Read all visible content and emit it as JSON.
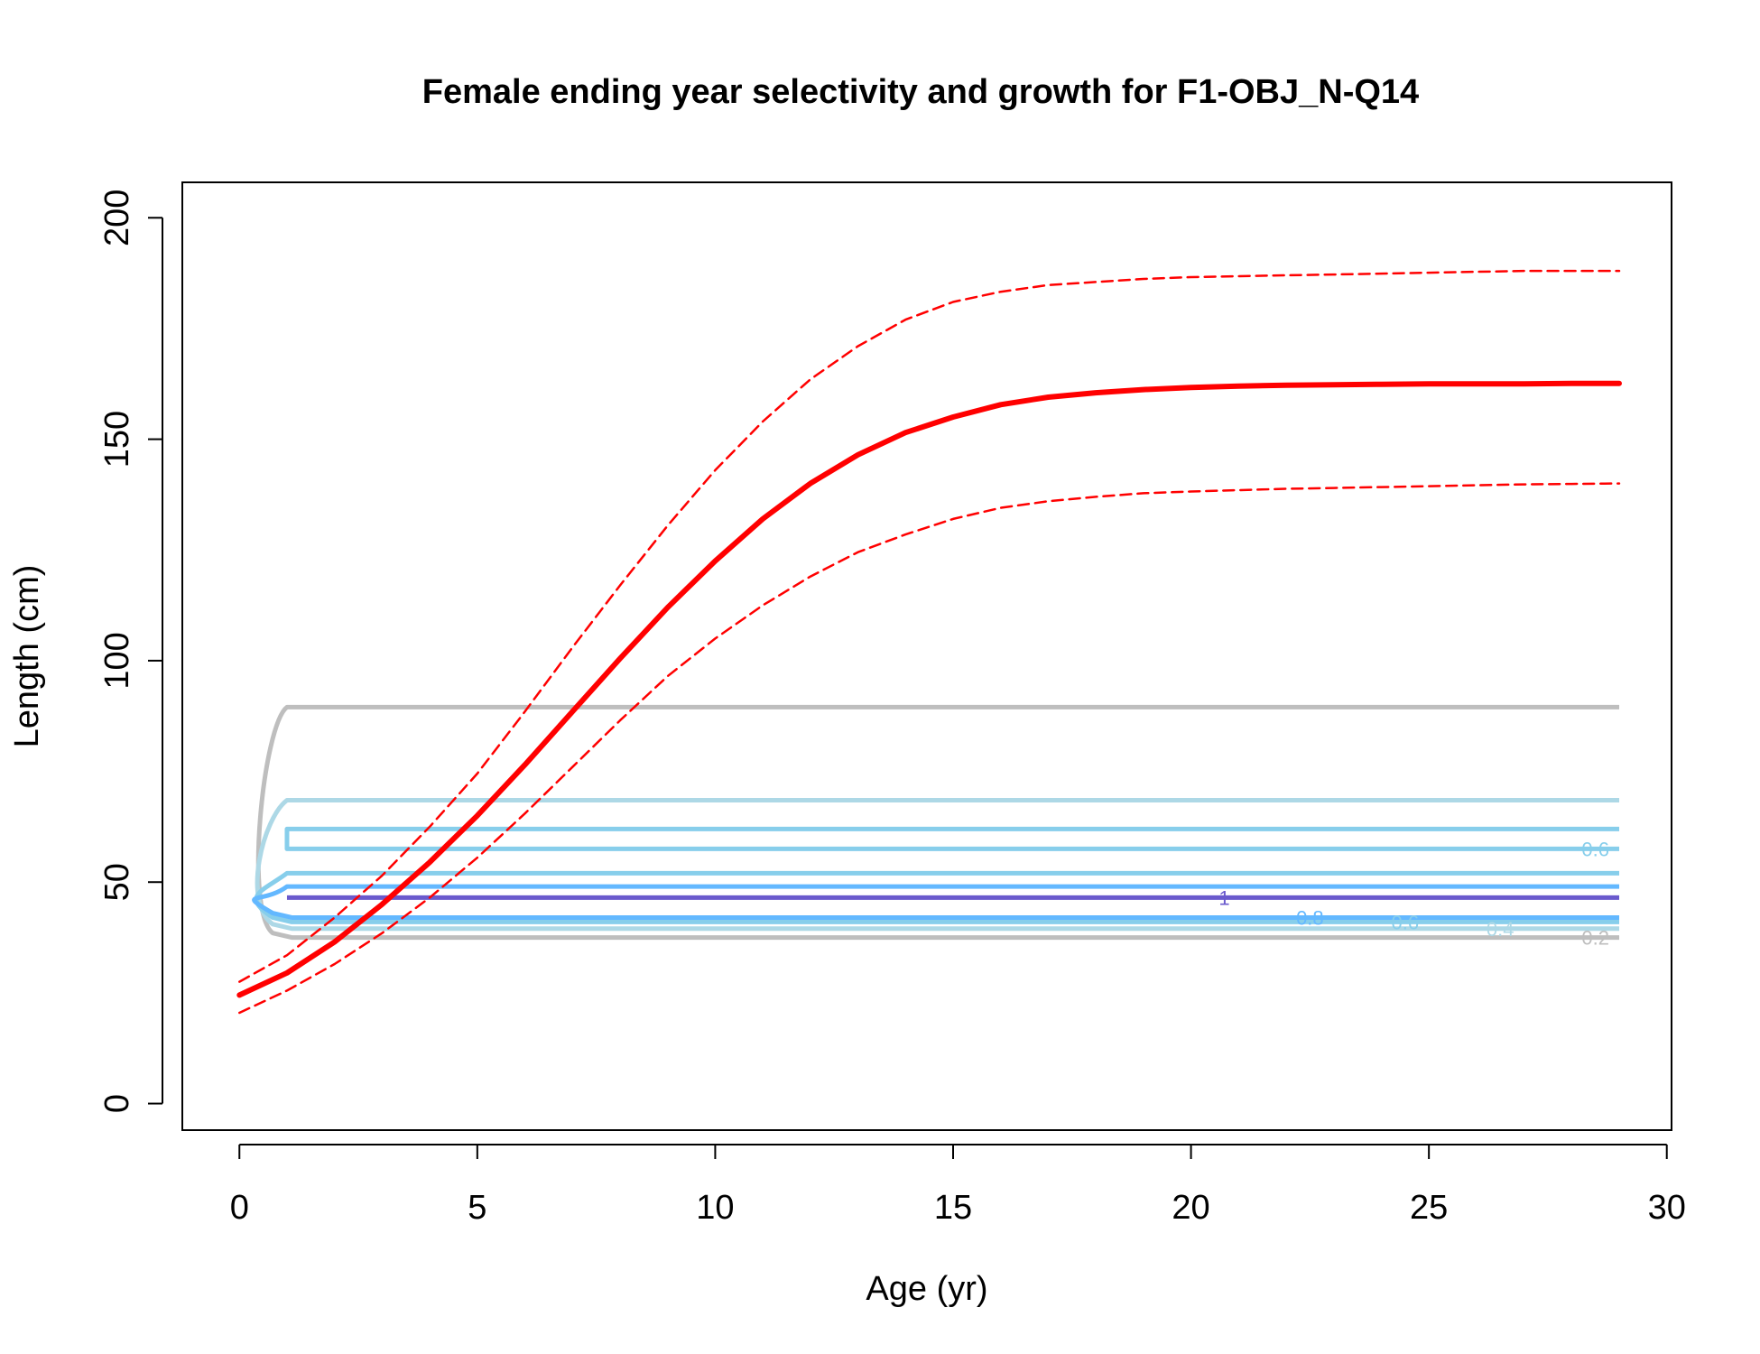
{
  "chart_data": {
    "type": "line",
    "title": "Female ending year selectivity and growth for F1-OBJ_N-Q14",
    "xlabel": "Age (yr)",
    "ylabel": "Length (cm)",
    "xlim": [
      -1.2,
      30.1
    ],
    "ylim": [
      -6,
      208
    ],
    "x_ticks": [
      0,
      5,
      10,
      15,
      20,
      25,
      30
    ],
    "y_ticks": [
      0,
      50,
      100,
      150,
      200
    ],
    "x_tick_labels": [
      "0",
      "5",
      "10",
      "15",
      "20",
      "25",
      "30"
    ],
    "y_tick_labels": [
      "0",
      "50",
      "100",
      "150",
      "200"
    ],
    "grid": false,
    "series": [
      {
        "role": "mean",
        "color": "#ff0000",
        "style": "solid-thick",
        "x": [
          0,
          1,
          2,
          3,
          4,
          5,
          6,
          7,
          8,
          9,
          10,
          11,
          12,
          13,
          14,
          15,
          16,
          17,
          18,
          19,
          20,
          21,
          22,
          23,
          24,
          25,
          26,
          27,
          28,
          29
        ],
        "values": [
          24.5,
          29.5,
          36.5,
          45.0,
          54.5,
          65.0,
          76.5,
          88.5,
          100.5,
          112.0,
          122.5,
          132.0,
          140.0,
          146.5,
          151.5,
          155.0,
          157.8,
          159.5,
          160.5,
          161.2,
          161.7,
          162.0,
          162.2,
          162.3,
          162.4,
          162.5,
          162.5,
          162.5,
          162.6,
          162.6
        ]
      },
      {
        "role": "upper",
        "color": "#ff0000",
        "style": "dashed",
        "x": [
          0,
          1,
          2,
          3,
          4,
          5,
          6,
          7,
          8,
          9,
          10,
          11,
          12,
          13,
          14,
          15,
          16,
          17,
          18,
          19,
          20,
          21,
          22,
          23,
          24,
          25,
          26,
          27,
          28,
          29
        ],
        "values": [
          27.5,
          33.5,
          42.0,
          51.5,
          62.5,
          74.5,
          88.5,
          103.0,
          117.0,
          130.5,
          143.0,
          154.0,
          163.5,
          171.0,
          177.0,
          181.0,
          183.3,
          184.8,
          185.5,
          186.2,
          186.6,
          186.8,
          187.0,
          187.2,
          187.4,
          187.6,
          187.8,
          188.0,
          188.0,
          188.0
        ]
      },
      {
        "role": "lower",
        "color": "#ff0000",
        "style": "dashed",
        "x": [
          0,
          1,
          2,
          3,
          4,
          5,
          6,
          7,
          8,
          9,
          10,
          11,
          12,
          13,
          14,
          15,
          16,
          17,
          18,
          19,
          20,
          21,
          22,
          23,
          24,
          25,
          26,
          27,
          28,
          29
        ],
        "values": [
          20.5,
          25.5,
          31.5,
          38.5,
          46.5,
          55.5,
          65.5,
          76.0,
          86.5,
          96.5,
          105.0,
          112.5,
          119.0,
          124.5,
          128.5,
          132.0,
          134.5,
          136.0,
          137.0,
          137.8,
          138.2,
          138.5,
          138.8,
          139.0,
          139.2,
          139.4,
          139.6,
          139.8,
          139.9,
          140.0
        ]
      }
    ],
    "contours": [
      {
        "level": "0.2",
        "color": "#bebebe",
        "y_top": 89.5,
        "y_bottom": 37.5,
        "inner": false,
        "label_x": 28.0
      },
      {
        "level": "0.4",
        "color": "#add8e6",
        "y_top": 68.5,
        "y_bottom": 39.5,
        "inner": false,
        "label_x": 26.0
      },
      {
        "level": "0.6",
        "color": "#87ceeb",
        "y_top": 52.0,
        "y_bottom": 41.0,
        "inner": false,
        "label_x": 24.0
      },
      {
        "level": "0.6",
        "color": "#87ceeb",
        "y_top": 62.0,
        "y_bottom": 57.5,
        "inner": true,
        "label_x": 28.0
      },
      {
        "level": "0.8",
        "color": "#63b8ff",
        "y_top": 49.0,
        "y_bottom": 42.0,
        "inner": false,
        "label_x": 22.0
      },
      {
        "level": "1",
        "color": "#6a5acd",
        "y_top": 46.5,
        "y_bottom": 46.5,
        "inner": false,
        "label_x": 20.5
      }
    ],
    "contour_labels": [
      {
        "text": "0.2",
        "x": 28.5,
        "y": 37.5,
        "color": "#bebebe"
      },
      {
        "text": "0.4",
        "x": 26.5,
        "y": 39.5,
        "color": "#add8e6"
      },
      {
        "text": "0.6",
        "x": 24.5,
        "y": 41.0,
        "color": "#87ceeb"
      },
      {
        "text": "0.6",
        "x": 28.5,
        "y": 57.5,
        "color": "#87ceeb"
      },
      {
        "text": "0.8",
        "x": 22.5,
        "y": 42.0,
        "color": "#63b8ff"
      },
      {
        "text": "1",
        "x": 20.7,
        "y": 46.5,
        "color": "#6a5acd"
      }
    ]
  }
}
